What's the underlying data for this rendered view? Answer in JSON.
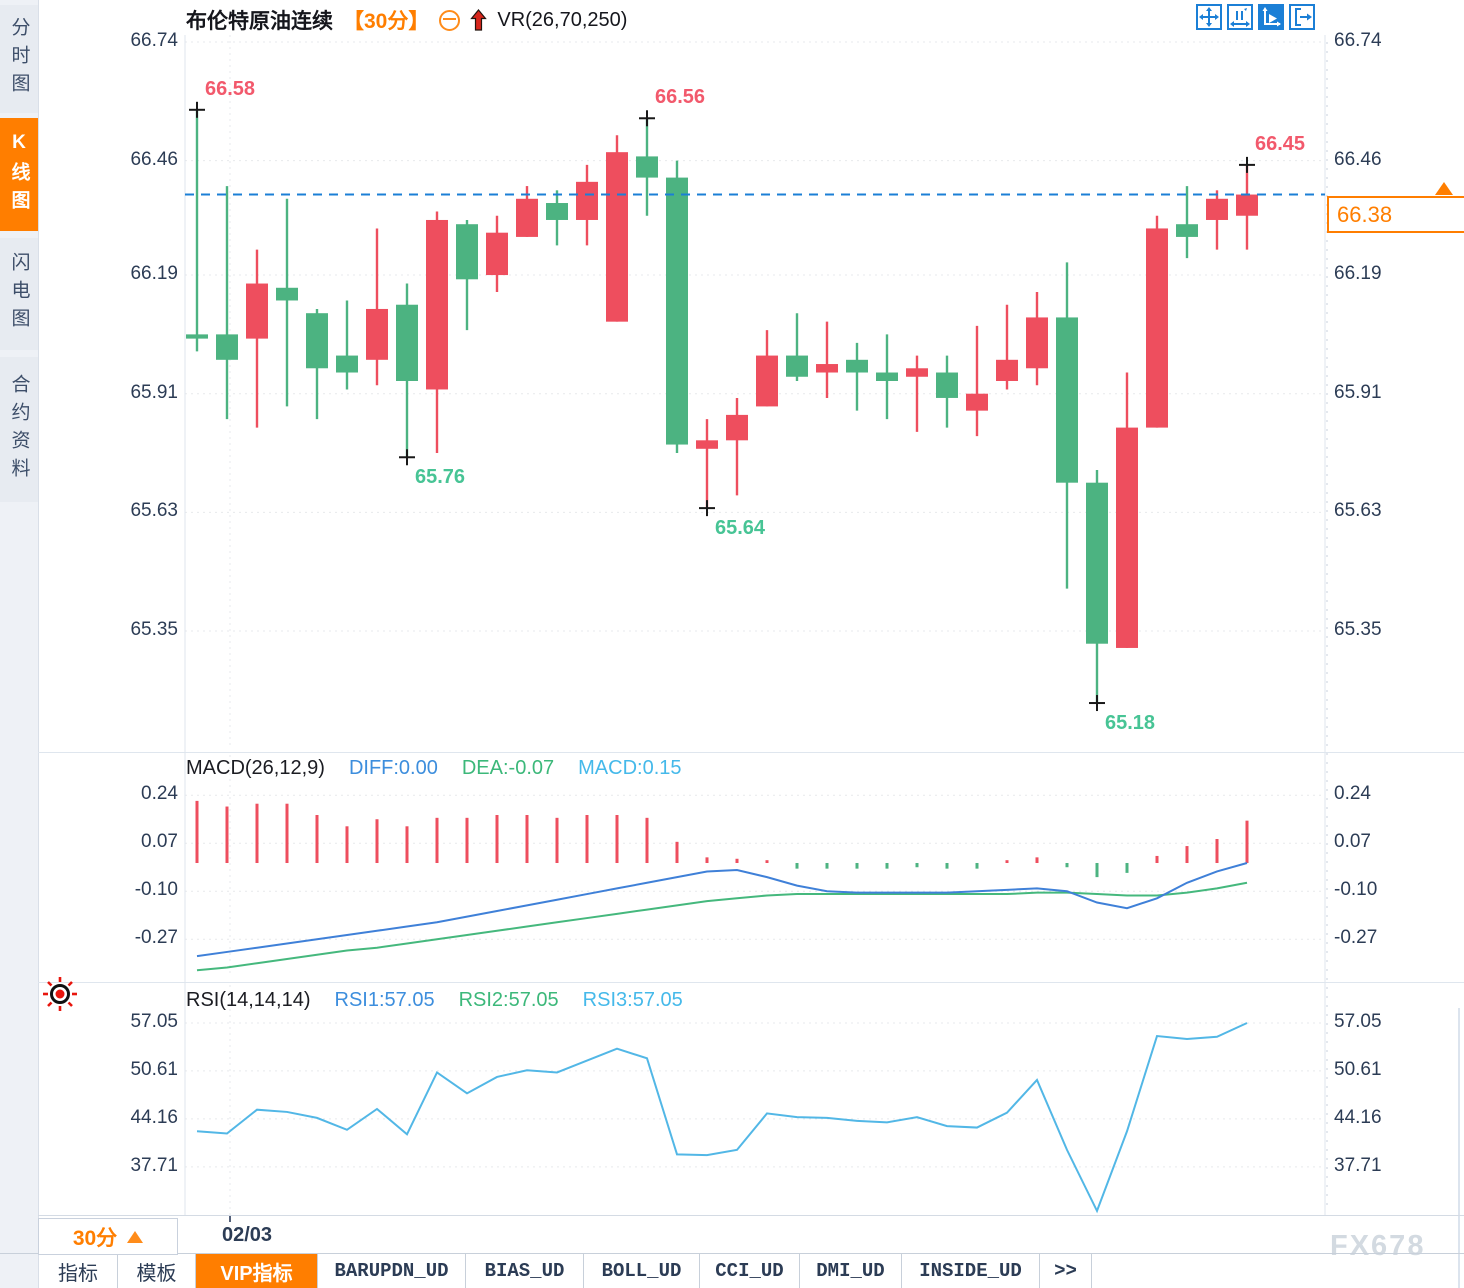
{
  "sidebar": {
    "items": [
      {
        "label": "分时图",
        "active": false
      },
      {
        "label": "K线图",
        "active": true
      },
      {
        "label": "闪电图",
        "active": false
      },
      {
        "label": "合约资料",
        "active": false
      }
    ]
  },
  "header": {
    "title": "布伦特原油连续",
    "timeframe": "【30分】",
    "icons": [
      "circle-minus-icon",
      "red-up-arrow-icon"
    ],
    "indicator": "VR(26,70,250)"
  },
  "toolbar": {
    "icons": [
      {
        "name": "pan-icon",
        "active": false
      },
      {
        "name": "axis-zoom-icon",
        "active": false
      },
      {
        "name": "auto-scale-icon",
        "active": true
      },
      {
        "name": "go-latest-icon",
        "active": false
      }
    ]
  },
  "price_axis": {
    "labels": [
      "66.74",
      "66.46",
      "66.19",
      "65.91",
      "65.63",
      "65.35"
    ],
    "current_price": "66.38"
  },
  "macd": {
    "title": "MACD(26,12,9)",
    "diff_label": "DIFF:0.00",
    "dea_label": "DEA:-0.07",
    "macd_label": "MACD:0.15",
    "axis": [
      "0.24",
      "0.07",
      "-0.10",
      "-0.27"
    ]
  },
  "rsi": {
    "title": "RSI(14,14,14)",
    "rsi1_label": "RSI1:57.05",
    "rsi2_label": "RSI2:57.05",
    "rsi3_label": "RSI3:57.05",
    "axis": [
      "57.05",
      "50.61",
      "44.16",
      "37.71"
    ]
  },
  "bottom": {
    "timeframe_button": "30分",
    "date_label": "02/03",
    "tabs": [
      {
        "label": "指标",
        "active": false,
        "mono": false
      },
      {
        "label": "模板",
        "active": false,
        "mono": false
      },
      {
        "label": "VIP指标",
        "active": true,
        "mono": false
      },
      {
        "label": "BARUPDN_UD",
        "active": false,
        "mono": true
      },
      {
        "label": "BIAS_UD",
        "active": false,
        "mono": true
      },
      {
        "label": "BOLL_UD",
        "active": false,
        "mono": true
      },
      {
        "label": "CCI_UD",
        "active": false,
        "mono": true
      },
      {
        "label": "DMI_UD",
        "active": false,
        "mono": true
      },
      {
        "label": "INSIDE_UD",
        "active": false,
        "mono": true
      },
      {
        "label": ">>",
        "active": false,
        "mono": true
      }
    ]
  },
  "watermark": "FX678",
  "colors": {
    "up": "#ee4e5e",
    "down": "#4cb381",
    "accent_orange": "#ff7e00",
    "accent_blue": "#1b7fd6",
    "diff_line": "#3f80d8",
    "dea_line": "#45b87d",
    "rsi_line": "#52b7e6",
    "axis_text": "#2c3c55",
    "annotation_high": "#f2596c",
    "annotation_low": "#47c495"
  },
  "chart_data": [
    {
      "type": "candlestick",
      "title": "布伦特原油连续 30分",
      "up_color": "#ee4e5e",
      "down_color": "#4cb381",
      "ylim": [
        65.18,
        66.74
      ],
      "y_ticks": [
        66.74,
        66.46,
        66.19,
        65.91,
        65.63,
        65.35
      ],
      "x_tick_label": "02/03",
      "current_price": 66.38,
      "candles": [
        [
          66.05,
          66.58,
          66.01,
          66.04
        ],
        [
          66.05,
          66.4,
          65.85,
          65.99
        ],
        [
          66.04,
          66.25,
          65.83,
          66.17
        ],
        [
          66.16,
          66.37,
          65.88,
          66.13
        ],
        [
          66.1,
          66.11,
          65.85,
          65.97
        ],
        [
          66.0,
          66.13,
          65.92,
          65.96
        ],
        [
          65.99,
          66.3,
          65.93,
          66.11
        ],
        [
          66.12,
          66.17,
          65.76,
          65.94
        ],
        [
          65.92,
          66.34,
          65.77,
          66.32
        ],
        [
          66.31,
          66.32,
          66.06,
          66.18
        ],
        [
          66.19,
          66.33,
          66.15,
          66.29
        ],
        [
          66.28,
          66.4,
          66.28,
          66.37
        ],
        [
          66.36,
          66.39,
          66.26,
          66.32
        ],
        [
          66.32,
          66.45,
          66.26,
          66.41
        ],
        [
          66.08,
          66.52,
          66.08,
          66.48
        ],
        [
          66.47,
          66.56,
          66.33,
          66.42
        ],
        [
          66.42,
          66.46,
          65.77,
          65.79
        ],
        [
          65.78,
          65.85,
          65.64,
          65.8
        ],
        [
          65.8,
          65.9,
          65.67,
          65.86
        ],
        [
          65.88,
          66.06,
          65.88,
          66.0
        ],
        [
          66.0,
          66.1,
          65.94,
          65.95
        ],
        [
          65.96,
          66.08,
          65.9,
          65.98
        ],
        [
          65.99,
          66.03,
          65.87,
          65.96
        ],
        [
          65.96,
          66.05,
          65.85,
          65.94
        ],
        [
          65.95,
          66.0,
          65.82,
          65.97
        ],
        [
          65.96,
          66.0,
          65.83,
          65.9
        ],
        [
          65.87,
          66.07,
          65.81,
          65.91
        ],
        [
          65.94,
          66.12,
          65.92,
          65.99
        ],
        [
          65.97,
          66.15,
          65.93,
          66.09
        ],
        [
          66.09,
          66.22,
          65.45,
          65.7
        ],
        [
          65.7,
          65.73,
          65.18,
          65.32
        ],
        [
          65.31,
          65.96,
          65.31,
          65.83
        ],
        [
          65.83,
          66.33,
          65.83,
          66.3
        ],
        [
          66.31,
          66.4,
          66.23,
          66.28
        ],
        [
          66.32,
          66.39,
          66.25,
          66.37
        ],
        [
          66.33,
          66.45,
          66.25,
          66.38
        ]
      ],
      "annotations": [
        {
          "index": 0,
          "type": "high",
          "value": 66.58,
          "label": "66.58"
        },
        {
          "index": 15,
          "type": "high",
          "value": 66.56,
          "label": "66.56"
        },
        {
          "index": 35,
          "type": "high",
          "value": 66.45,
          "label": "66.45"
        },
        {
          "index": 7,
          "type": "low",
          "value": 65.76,
          "label": "65.76"
        },
        {
          "index": 17,
          "type": "low",
          "value": 65.64,
          "label": "65.64"
        },
        {
          "index": 30,
          "type": "low",
          "value": 65.18,
          "label": "65.18"
        }
      ]
    },
    {
      "type": "bar",
      "title": "MACD(26,12,9)",
      "y_ticks": [
        0.24,
        0.07,
        -0.1,
        -0.27
      ],
      "series": [
        {
          "name": "DIFF",
          "values": [
            -0.33,
            -0.315,
            -0.3,
            -0.285,
            -0.27,
            -0.255,
            -0.24,
            -0.225,
            -0.21,
            -0.19,
            -0.17,
            -0.15,
            -0.13,
            -0.11,
            -0.09,
            -0.07,
            -0.05,
            -0.03,
            -0.025,
            -0.05,
            -0.08,
            -0.1,
            -0.105,
            -0.105,
            -0.105,
            -0.105,
            -0.1,
            -0.095,
            -0.09,
            -0.1,
            -0.14,
            -0.16,
            -0.125,
            -0.07,
            -0.03,
            0.0
          ]
        },
        {
          "name": "DEA",
          "values": [
            -0.38,
            -0.37,
            -0.355,
            -0.34,
            -0.325,
            -0.31,
            -0.3,
            -0.285,
            -0.27,
            -0.255,
            -0.24,
            -0.225,
            -0.21,
            -0.195,
            -0.18,
            -0.165,
            -0.15,
            -0.135,
            -0.125,
            -0.115,
            -0.11,
            -0.11,
            -0.11,
            -0.11,
            -0.11,
            -0.11,
            -0.11,
            -0.11,
            -0.105,
            -0.105,
            -0.11,
            -0.115,
            -0.115,
            -0.105,
            -0.09,
            -0.07
          ]
        },
        {
          "name": "MACD",
          "values": [
            0.22,
            0.2,
            0.21,
            0.21,
            0.17,
            0.13,
            0.155,
            0.13,
            0.16,
            0.16,
            0.17,
            0.17,
            0.16,
            0.17,
            0.17,
            0.16,
            0.075,
            0.02,
            0.015,
            0.01,
            -0.02,
            -0.02,
            -0.02,
            -0.02,
            -0.015,
            -0.02,
            -0.02,
            0.01,
            0.02,
            -0.015,
            -0.05,
            -0.035,
            0.025,
            0.06,
            0.085,
            0.15
          ]
        }
      ]
    },
    {
      "type": "line",
      "title": "RSI(14,14,14)",
      "y_ticks": [
        57.05,
        50.61,
        44.16,
        37.71
      ],
      "series": [
        {
          "name": "RSI",
          "values": [
            42.5,
            42.2,
            45.4,
            45.1,
            44.3,
            42.7,
            45.5,
            42.1,
            50.4,
            47.6,
            49.8,
            50.7,
            50.4,
            52.0,
            53.6,
            52.3,
            39.4,
            39.3,
            40.0,
            44.9,
            44.4,
            44.3,
            43.9,
            43.7,
            44.4,
            43.2,
            43.0,
            45.0,
            49.4,
            40.0,
            31.8,
            42.5,
            55.3,
            54.9,
            55.2,
            57.05
          ]
        }
      ]
    }
  ]
}
